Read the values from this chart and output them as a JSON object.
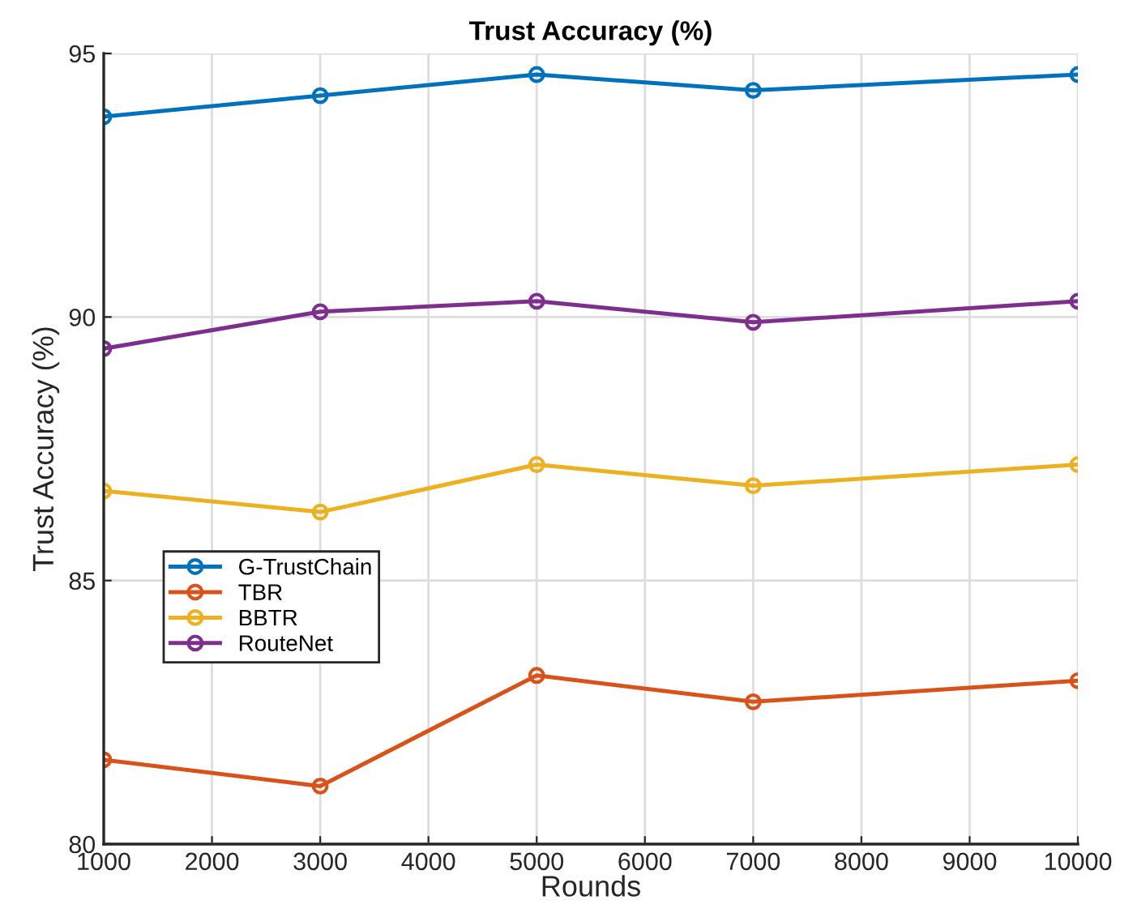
{
  "chart_data": {
    "type": "line",
    "title": "Trust Accuracy (%)",
    "xlabel": "Rounds",
    "ylabel": "Trust Accuracy (%)",
    "x": [
      1000,
      3000,
      5000,
      7000,
      10000
    ],
    "series": [
      {
        "name": "G-TrustChain",
        "color": "#0072bd",
        "values": [
          93.8,
          94.2,
          94.6,
          94.3,
          94.6
        ]
      },
      {
        "name": "TBR",
        "color": "#d95319",
        "values": [
          81.6,
          81.1,
          83.2,
          82.7,
          83.1
        ]
      },
      {
        "name": "BBTR",
        "color": "#edb120",
        "values": [
          86.7,
          86.3,
          87.2,
          86.8,
          87.2
        ]
      },
      {
        "name": "RouteNet",
        "color": "#7e2f8e",
        "values": [
          89.4,
          90.1,
          90.3,
          89.9,
          90.3
        ]
      }
    ],
    "xlim": [
      1000,
      10000
    ],
    "xticks": [
      1000,
      2000,
      3000,
      4000,
      5000,
      6000,
      7000,
      8000,
      9000,
      10000
    ],
    "ylim": [
      80,
      95
    ],
    "yticks": [
      80,
      85,
      90,
      95
    ],
    "grid": true,
    "legend": "left",
    "marker": "circle",
    "line_style": "solid"
  }
}
